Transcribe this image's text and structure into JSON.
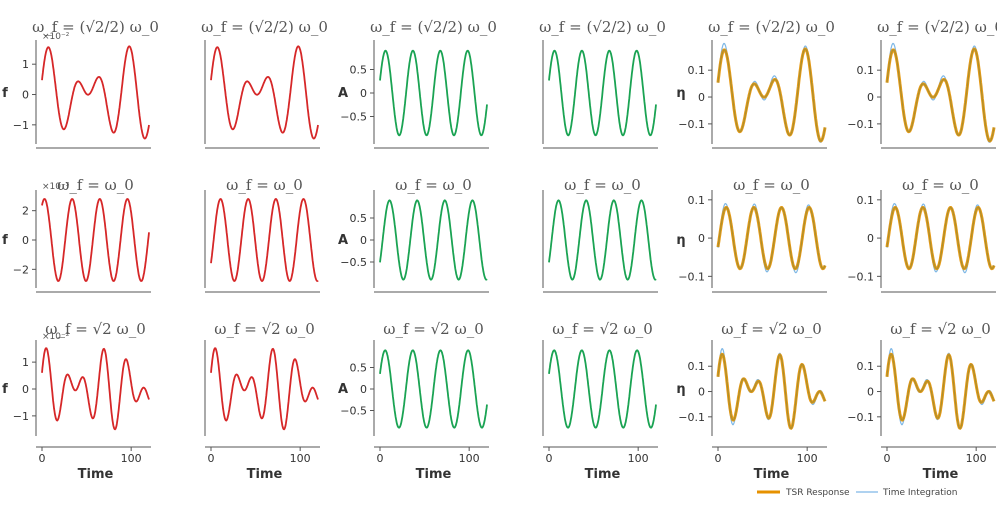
{
  "colors": {
    "f": "#d62728",
    "A": "#1aa353",
    "tsr": "#e69100",
    "integration": "#7fb8e6",
    "axis": "#555555"
  },
  "row_titles": [
    "ω_f = (√2/2) ω_0",
    "ω_f = ω_0",
    "ω_f = √2 ω_0"
  ],
  "x_axis": {
    "label": "Time",
    "ticks": [
      0,
      100
    ],
    "range": [
      0,
      120
    ]
  },
  "y_axis_labels": {
    "f": "f",
    "A": "A",
    "eta": "η"
  },
  "multipliers": [
    "×10⁻²",
    "×10⁻³",
    "×10⁻²"
  ],
  "legend": {
    "tsr": "TSR Response",
    "integration": "Time Integration"
  },
  "chart_data": [
    {
      "row": 0,
      "col": 0,
      "type": "line",
      "quantity": "f",
      "ylabel": "f",
      "yticks": [
        -1,
        0,
        1
      ],
      "ylim": [
        -1.5,
        1.6
      ],
      "signal": {
        "components": [
          {
            "amp": 0.8,
            "period": 44,
            "phase": 0.3
          },
          {
            "amp": 0.8,
            "period": 30.7,
            "phase": 0.3
          }
        ]
      }
    },
    {
      "row": 0,
      "col": 1,
      "type": "line",
      "quantity": "f",
      "ylim": [
        -1.5,
        1.6
      ],
      "signal": {
        "components": [
          {
            "amp": 0.8,
            "period": 44,
            "phase": 0.3
          },
          {
            "amp": 0.8,
            "period": 30.7,
            "phase": 0.3
          }
        ]
      }
    },
    {
      "row": 0,
      "col": 2,
      "type": "line",
      "quantity": "A",
      "ylabel": "A",
      "yticks": [
        -0.5,
        0,
        0.5
      ],
      "ylim": [
        -1.0,
        1.0
      ],
      "signal": {
        "components": [
          {
            "amp": 0.9,
            "period": 30.7,
            "phase": 0.3
          }
        ]
      }
    },
    {
      "row": 0,
      "col": 3,
      "type": "line",
      "quantity": "A",
      "ylim": [
        -1.0,
        1.0
      ],
      "signal": {
        "components": [
          {
            "amp": 0.9,
            "period": 30.7,
            "phase": 0.3
          }
        ]
      }
    },
    {
      "row": 0,
      "col": 4,
      "type": "line",
      "quantity": "eta",
      "ylabel": "η",
      "yticks": [
        -0.1,
        0,
        0.1
      ],
      "ylim": [
        -0.16,
        0.19
      ],
      "signal": {
        "components": [
          {
            "amp": 0.09,
            "period": 44,
            "phase": 0.3
          },
          {
            "amp": 0.09,
            "period": 30.7,
            "phase": 0.3
          }
        ]
      }
    },
    {
      "row": 0,
      "col": 5,
      "type": "line",
      "quantity": "eta",
      "yticks": [
        -0.1,
        0,
        0.1
      ],
      "ylim": [
        -0.16,
        0.19
      ],
      "signal": {
        "components": [
          {
            "amp": 0.09,
            "period": 44,
            "phase": 0.3
          },
          {
            "amp": 0.09,
            "period": 30.7,
            "phase": 0.3
          }
        ]
      }
    },
    {
      "row": 1,
      "col": 0,
      "type": "line",
      "quantity": "f",
      "ylabel": "f",
      "yticks": [
        -2,
        0,
        2
      ],
      "ylim": [
        -3.0,
        3.0
      ],
      "signal": {
        "components": [
          {
            "amp": 2.8,
            "period": 31,
            "phase": 1.0
          }
        ]
      }
    },
    {
      "row": 1,
      "col": 1,
      "type": "line",
      "quantity": "f",
      "ylim": [
        -3.0,
        3.0
      ],
      "signal": {
        "components": [
          {
            "amp": 2.8,
            "period": 31,
            "phase": -0.6
          }
        ]
      }
    },
    {
      "row": 1,
      "col": 2,
      "type": "line",
      "quantity": "A",
      "ylabel": "A",
      "yticks": [
        -0.5,
        0,
        0.5
      ],
      "ylim": [
        -1.0,
        1.0
      ],
      "signal": {
        "components": [
          {
            "amp": 0.9,
            "period": 31,
            "phase": -0.6
          }
        ]
      }
    },
    {
      "row": 1,
      "col": 3,
      "type": "line",
      "quantity": "A",
      "ylim": [
        -1.0,
        1.0
      ],
      "signal": {
        "components": [
          {
            "amp": 0.9,
            "period": 31,
            "phase": -0.6
          }
        ]
      }
    },
    {
      "row": 1,
      "col": 4,
      "type": "line",
      "quantity": "eta",
      "ylabel": "η",
      "yticks": [
        -0.1,
        0,
        0.1
      ],
      "ylim": [
        -0.12,
        0.11
      ],
      "signal": {
        "components": [
          {
            "amp": 0.08,
            "period": 31,
            "phase": -0.3
          }
        ]
      }
    },
    {
      "row": 1,
      "col": 5,
      "type": "line",
      "quantity": "eta",
      "yticks": [
        -0.1,
        0,
        0.1
      ],
      "ylim": [
        -0.12,
        0.11
      ],
      "signal": {
        "components": [
          {
            "amp": 0.08,
            "period": 31,
            "phase": -0.3
          }
        ]
      }
    },
    {
      "row": 2,
      "col": 0,
      "type": "line",
      "quantity": "f",
      "ylabel": "f",
      "yticks": [
        -1,
        0,
        1
      ],
      "ylim": [
        -1.6,
        1.6
      ],
      "signal": {
        "components": [
          {
            "amp": 0.8,
            "period": 22,
            "phase": 0.4
          },
          {
            "amp": 0.75,
            "period": 31,
            "phase": 0.4
          }
        ]
      }
    },
    {
      "row": 2,
      "col": 1,
      "type": "line",
      "quantity": "f",
      "ylim": [
        -1.6,
        1.6
      ],
      "signal": {
        "components": [
          {
            "amp": 0.8,
            "period": 22,
            "phase": 0.4
          },
          {
            "amp": 0.75,
            "period": 31,
            "phase": 0.4
          }
        ]
      }
    },
    {
      "row": 2,
      "col": 2,
      "type": "line",
      "quantity": "A",
      "ylabel": "A",
      "yticks": [
        -0.5,
        0,
        0.5
      ],
      "ylim": [
        -1.0,
        1.0
      ],
      "signal": {
        "components": [
          {
            "amp": 0.9,
            "period": 31,
            "phase": 0.4
          }
        ]
      }
    },
    {
      "row": 2,
      "col": 3,
      "type": "line",
      "quantity": "A",
      "ylim": [
        -1.0,
        1.0
      ],
      "signal": {
        "components": [
          {
            "amp": 0.9,
            "period": 31,
            "phase": 0.4
          }
        ]
      }
    },
    {
      "row": 2,
      "col": 4,
      "type": "line",
      "quantity": "eta",
      "ylabel": "η",
      "yticks": [
        -0.1,
        0,
        0.1
      ],
      "ylim": [
        -0.16,
        0.18
      ],
      "signal": {
        "components": [
          {
            "amp": 0.075,
            "period": 22,
            "phase": 0.4
          },
          {
            "amp": 0.075,
            "period": 31,
            "phase": 0.4
          }
        ]
      }
    },
    {
      "row": 2,
      "col": 5,
      "type": "line",
      "quantity": "eta",
      "yticks": [
        -0.1,
        0,
        0.1
      ],
      "ylim": [
        -0.16,
        0.18
      ],
      "signal": {
        "components": [
          {
            "amp": 0.075,
            "period": 22,
            "phase": 0.4
          },
          {
            "amp": 0.075,
            "period": 31,
            "phase": 0.4
          }
        ]
      }
    }
  ]
}
